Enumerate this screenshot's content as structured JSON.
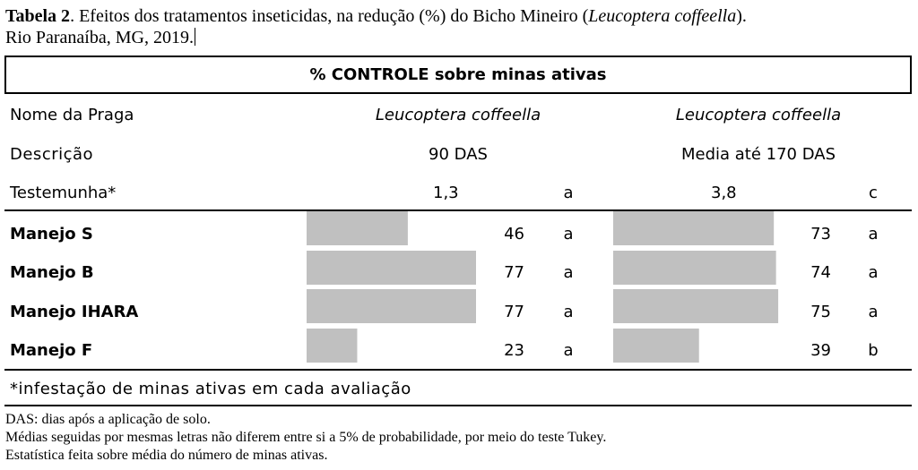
{
  "caption": {
    "label": "Tabela 2",
    "text_before": ". Efeitos dos tratamentos inseticidas, na redução (%) do Bicho Mineiro (",
    "species": "Leucoptera coffeella",
    "text_after": ").",
    "line2": "Rio Paranaíba, MG, 2019."
  },
  "header": "% CONTROLE sobre minas ativas",
  "labels": {
    "pest_row": "Nome da Praga",
    "desc_row": "Descrição"
  },
  "columns": [
    {
      "pest": "Leucoptera coffeella",
      "description": "90 DAS"
    },
    {
      "pest": "Leucoptera coffeella",
      "description": "Media até 170 DAS"
    }
  ],
  "control": {
    "name": "Testemunha*",
    "values": [
      "1,3",
      "3,8"
    ],
    "letters": [
      "a",
      "c"
    ]
  },
  "chart_data": {
    "type": "bar",
    "orientation": "horizontal",
    "categories": [
      "Manejo S",
      "Manejo B",
      "Manejo IHARA",
      "Manejo F"
    ],
    "xlim": [
      0,
      77
    ],
    "series": [
      {
        "name": "90 DAS",
        "values": [
          46,
          77,
          77,
          23
        ],
        "letters": [
          "a",
          "a",
          "a",
          "a"
        ]
      },
      {
        "name": "Media até 170 DAS",
        "values": [
          73,
          74,
          75,
          39
        ],
        "letters": [
          "a",
          "a",
          "a",
          "b"
        ]
      }
    ],
    "bar_color": "#c0c0c0"
  },
  "table_note": "*infestação de minas ativas em cada avaliação",
  "footnotes": [
    "DAS: dias após a aplicação de solo.",
    "Médias seguidas por mesmas letras não diferem entre si a 5% de probabilidade, por meio do teste Tukey.",
    "Estatística feita sobre média do número de minas ativas."
  ]
}
